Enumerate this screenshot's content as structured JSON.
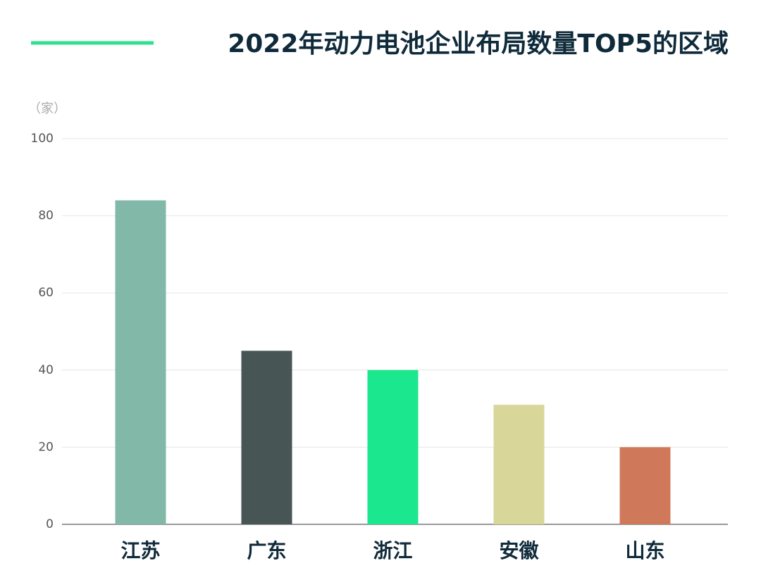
{
  "chart_data": {
    "type": "bar",
    "title": "2022年动力电池企业布局数量TOP5的区域",
    "y_unit": "（家）",
    "categories": [
      "江苏",
      "广东",
      "浙江",
      "安徽",
      "山东"
    ],
    "values": [
      84,
      45,
      40,
      31,
      20
    ],
    "colors": [
      "#82b8a8",
      "#475654",
      "#1be78e",
      "#d8d799",
      "#d0785a"
    ],
    "ylim": [
      0,
      100
    ],
    "yticks": [
      0,
      20,
      40,
      60,
      80,
      100
    ],
    "grid": true
  }
}
